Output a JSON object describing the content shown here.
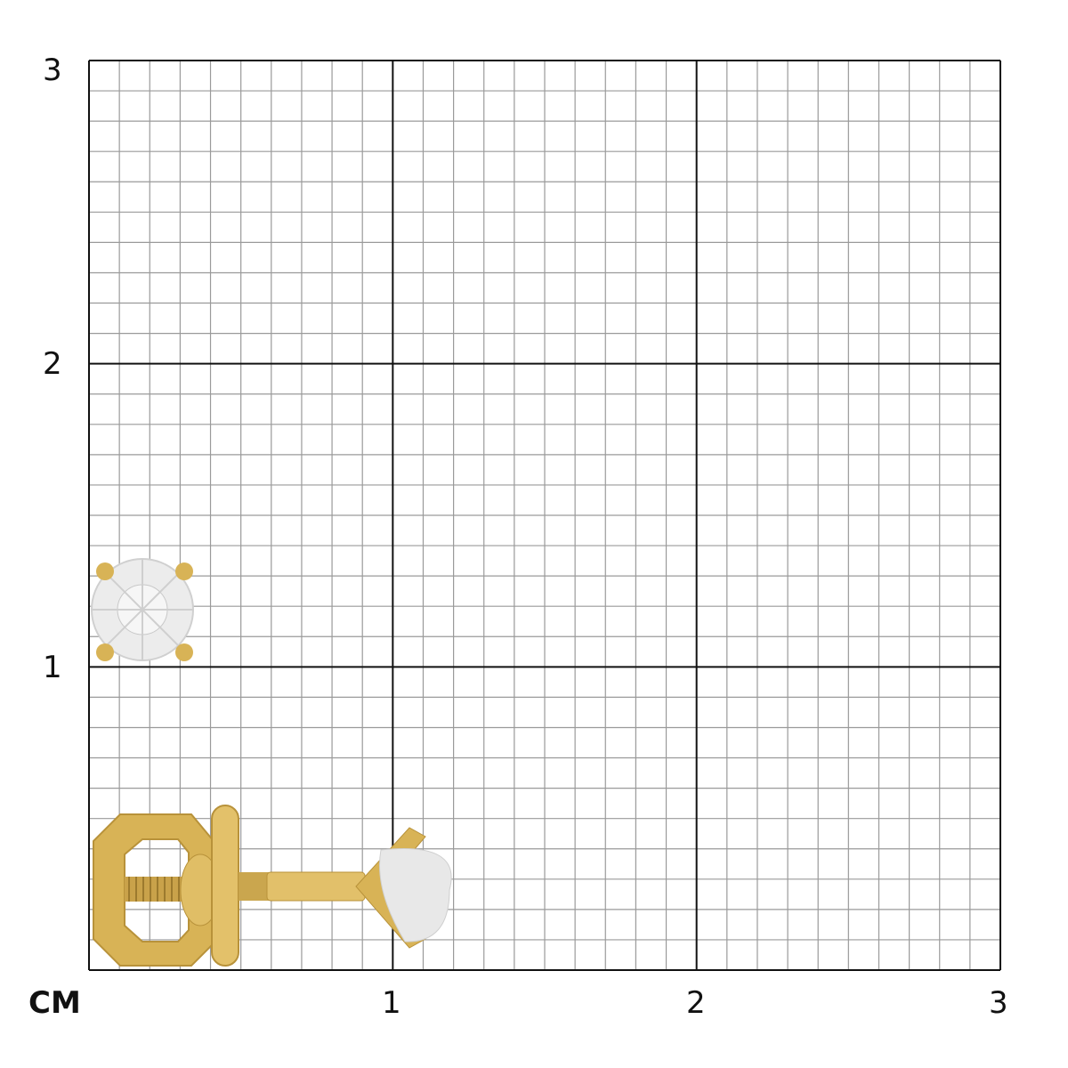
{
  "unit_label": "CM",
  "y_labels": [
    "3",
    "2",
    "1"
  ],
  "x_labels": [
    "1",
    "2",
    "3"
  ],
  "grid": {
    "max_cm": 3,
    "subdivisions": 10,
    "major_color": "#111111",
    "minor_color": "#9a9a9a"
  },
  "product": {
    "metal_color": "#d8b356",
    "stone_color": "#e6e6e6"
  }
}
